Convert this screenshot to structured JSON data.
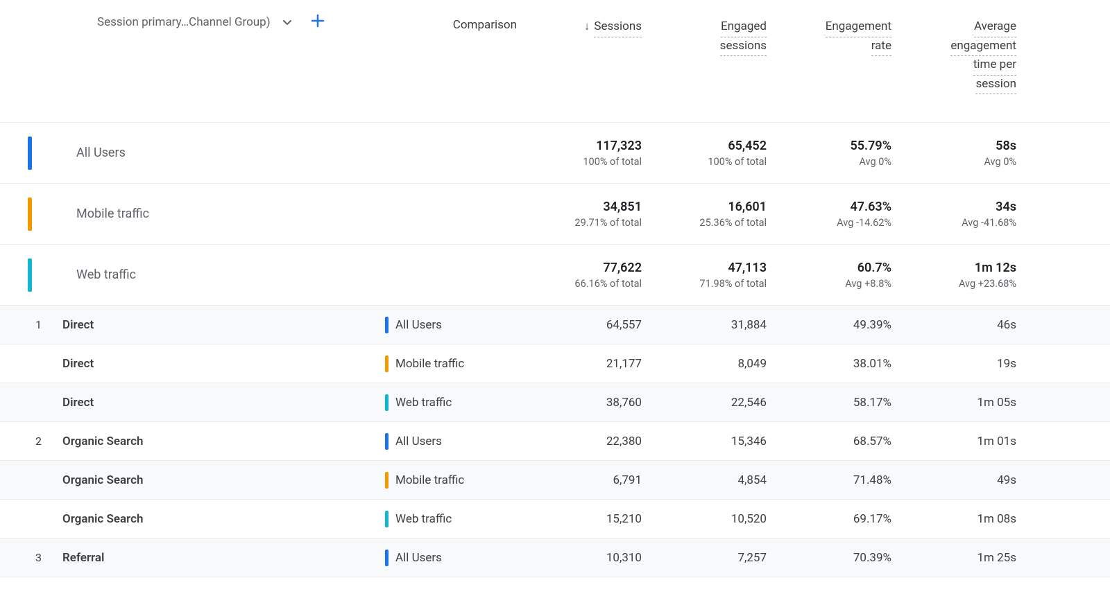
{
  "colors": {
    "all_users": "#1a73e8",
    "mobile": "#f29900",
    "web": "#12b5cb",
    "border": "#e8eaed",
    "text_primary": "#3c4043",
    "text_secondary": "#5f6368",
    "alt_row_bg": "#f8f9fa"
  },
  "header": {
    "dimension_label": "Session primary…Channel Group)",
    "comparison_label": "Comparison",
    "metrics": [
      {
        "label": "Sessions",
        "sorted": true
      },
      {
        "label": "Engaged sessions",
        "sorted": false
      },
      {
        "label": "Engagement rate",
        "sorted": false
      },
      {
        "label": "Average engagement time per session",
        "sorted": false
      }
    ]
  },
  "segments": [
    {
      "name": "All Users",
      "color_key": "all_users",
      "metrics": [
        {
          "value": "117,323",
          "sub": "100% of total"
        },
        {
          "value": "65,452",
          "sub": "100% of total"
        },
        {
          "value": "55.79%",
          "sub": "Avg 0%"
        },
        {
          "value": "58s",
          "sub": "Avg 0%"
        }
      ]
    },
    {
      "name": "Mobile traffic",
      "color_key": "mobile",
      "metrics": [
        {
          "value": "34,851",
          "sub": "29.71% of total"
        },
        {
          "value": "16,601",
          "sub": "25.36% of total"
        },
        {
          "value": "47.63%",
          "sub": "Avg -14.62%"
        },
        {
          "value": "34s",
          "sub": "Avg -41.68%"
        }
      ]
    },
    {
      "name": "Web traffic",
      "color_key": "web",
      "metrics": [
        {
          "value": "77,622",
          "sub": "66.16% of total"
        },
        {
          "value": "47,113",
          "sub": "71.98% of total"
        },
        {
          "value": "60.7%",
          "sub": "Avg +8.8%"
        },
        {
          "value": "1m 12s",
          "sub": "Avg +23.68%"
        }
      ]
    }
  ],
  "rows": [
    {
      "index": "1",
      "channel": "Direct",
      "segment": "All Users",
      "color_key": "all_users",
      "alt": true,
      "metrics": [
        "64,557",
        "31,884",
        "49.39%",
        "46s"
      ]
    },
    {
      "index": "",
      "channel": "Direct",
      "segment": "Mobile traffic",
      "color_key": "mobile",
      "alt": false,
      "metrics": [
        "21,177",
        "8,049",
        "38.01%",
        "19s"
      ]
    },
    {
      "index": "",
      "channel": "Direct",
      "segment": "Web traffic",
      "color_key": "web",
      "alt": true,
      "metrics": [
        "38,760",
        "22,546",
        "58.17%",
        "1m 05s"
      ]
    },
    {
      "index": "2",
      "channel": "Organic Search",
      "segment": "All Users",
      "color_key": "all_users",
      "alt": false,
      "metrics": [
        "22,380",
        "15,346",
        "68.57%",
        "1m 01s"
      ]
    },
    {
      "index": "",
      "channel": "Organic Search",
      "segment": "Mobile traffic",
      "color_key": "mobile",
      "alt": true,
      "metrics": [
        "6,791",
        "4,854",
        "71.48%",
        "49s"
      ]
    },
    {
      "index": "",
      "channel": "Organic Search",
      "segment": "Web traffic",
      "color_key": "web",
      "alt": false,
      "metrics": [
        "15,210",
        "10,520",
        "69.17%",
        "1m 08s"
      ]
    },
    {
      "index": "3",
      "channel": "Referral",
      "segment": "All Users",
      "color_key": "all_users",
      "alt": true,
      "metrics": [
        "10,310",
        "7,257",
        "70.39%",
        "1m 25s"
      ]
    }
  ]
}
